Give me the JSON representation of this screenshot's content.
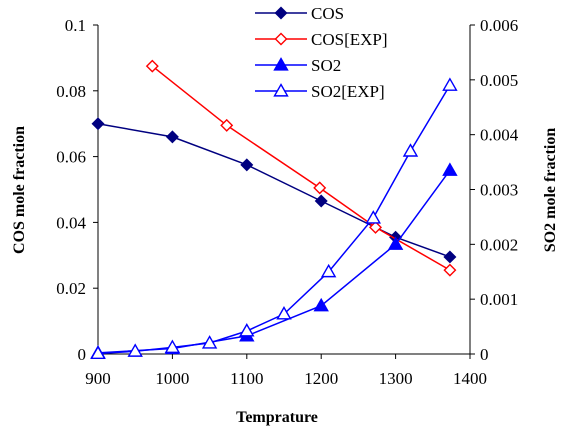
{
  "chart_data": {
    "type": "line",
    "xlabel": "Temprature",
    "ylabel": "COS mole fraction",
    "y2label": "SO2 mole fraction",
    "xlim": [
      900,
      1400
    ],
    "ylim": [
      0,
      0.1
    ],
    "y2lim": [
      0,
      0.006
    ],
    "x_ticks": [
      "900",
      "1000",
      "1100",
      "1200",
      "1300",
      "1400"
    ],
    "y_ticks": [
      "0",
      "0.02",
      "0.04",
      "0.06",
      "0.08",
      "0.1"
    ],
    "y2_ticks": [
      "0",
      "0.001",
      "0.002",
      "0.003",
      "0.004",
      "0.005",
      "0.006"
    ],
    "legend_position": "top-center",
    "grid": false,
    "series": [
      {
        "name": "COS",
        "axis": "left",
        "color": "#000080",
        "marker": "diamond-filled",
        "x": [
          900,
          1000,
          1100,
          1200,
          1300,
          1373
        ],
        "y": [
          0.07,
          0.066,
          0.0575,
          0.0465,
          0.0355,
          0.0295
        ]
      },
      {
        "name": "COS[EXP]",
        "axis": "left",
        "color": "#ff0000",
        "marker": "diamond-open",
        "x": [
          973,
          1073,
          1198,
          1273,
          1373
        ],
        "y": [
          0.0875,
          0.0695,
          0.0505,
          0.0385,
          0.0255
        ]
      },
      {
        "name": "SO2",
        "axis": "right",
        "color": "#0000ff",
        "marker": "triangle-filled",
        "x": [
          900,
          1000,
          1100,
          1200,
          1300,
          1373
        ],
        "y": [
          2e-05,
          0.0001,
          0.00033,
          0.00088,
          0.002,
          0.00335
        ]
      },
      {
        "name": "SO2[EXP]",
        "axis": "right",
        "color": "#0000ff",
        "marker": "triangle-open",
        "x": [
          900,
          950,
          1000,
          1050,
          1100,
          1150,
          1210,
          1270,
          1320,
          1373
        ],
        "y": [
          1e-05,
          5e-05,
          0.00012,
          0.0002,
          0.00042,
          0.00073,
          0.0015,
          0.00248,
          0.0037,
          0.0049
        ]
      }
    ]
  }
}
